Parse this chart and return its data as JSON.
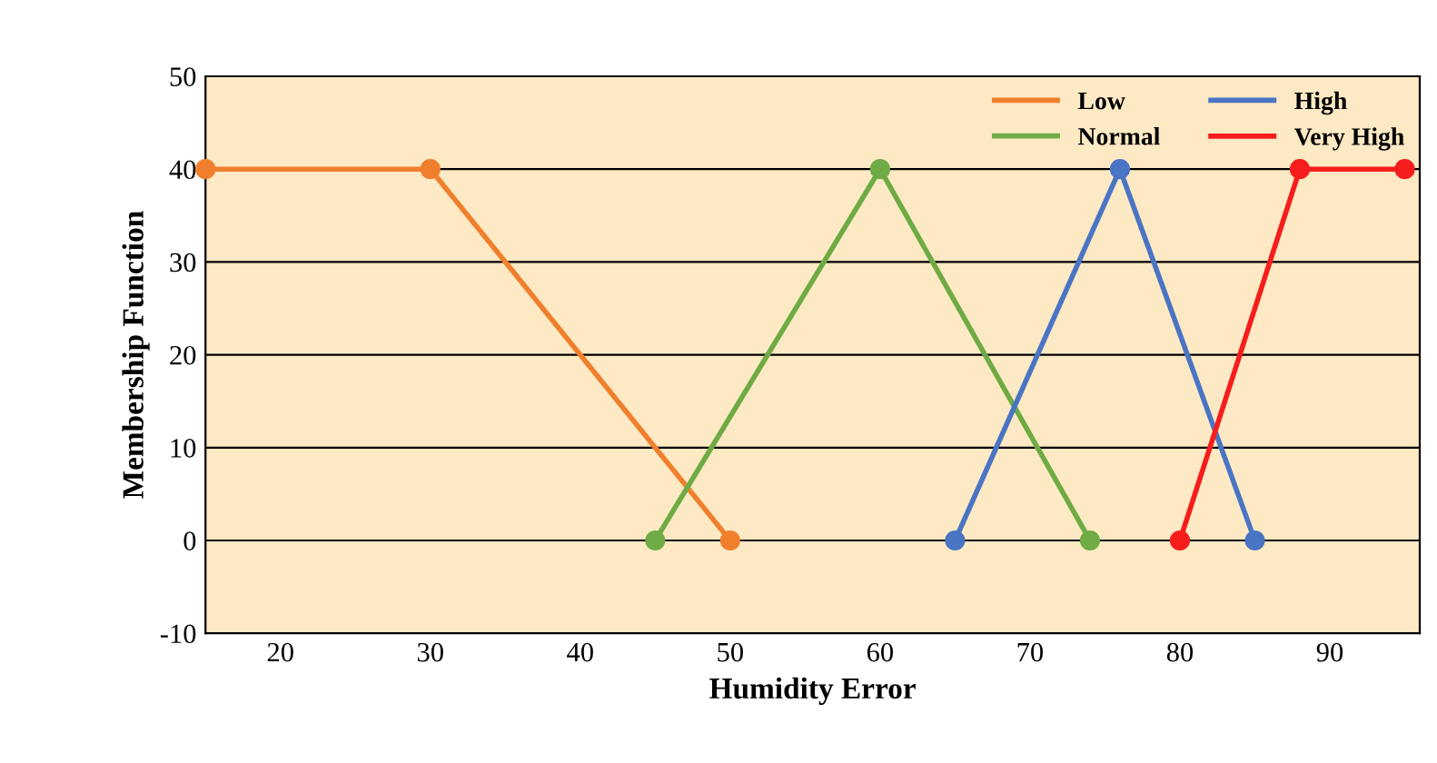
{
  "chart_data": {
    "type": "line",
    "xlabel": "Humidity Error",
    "ylabel": "Membership Function",
    "series": [
      {
        "name": "Low",
        "color": "#f07f2d",
        "x": [
          15,
          30,
          50
        ],
        "values": [
          40,
          40,
          0
        ]
      },
      {
        "name": "Normal",
        "color": "#6fab45",
        "x": [
          45,
          60,
          74
        ],
        "values": [
          0,
          40,
          0
        ]
      },
      {
        "name": "High",
        "color": "#4a74c4",
        "x": [
          65,
          76,
          85
        ],
        "values": [
          0,
          40,
          0
        ]
      },
      {
        "name": "Very High",
        "color": "#f61d1d",
        "x": [
          80,
          88,
          95
        ],
        "values": [
          0,
          40,
          40
        ]
      }
    ],
    "xlim": [
      15,
      96
    ],
    "xticks": [
      20,
      30,
      40,
      50,
      60,
      70,
      80,
      90
    ],
    "ylim": [
      -10,
      50
    ],
    "yticks": [
      -10,
      0,
      10,
      20,
      30,
      40,
      50
    ],
    "grid": "y",
    "legend": "top right",
    "marker": "circle",
    "line_style": "solid"
  }
}
